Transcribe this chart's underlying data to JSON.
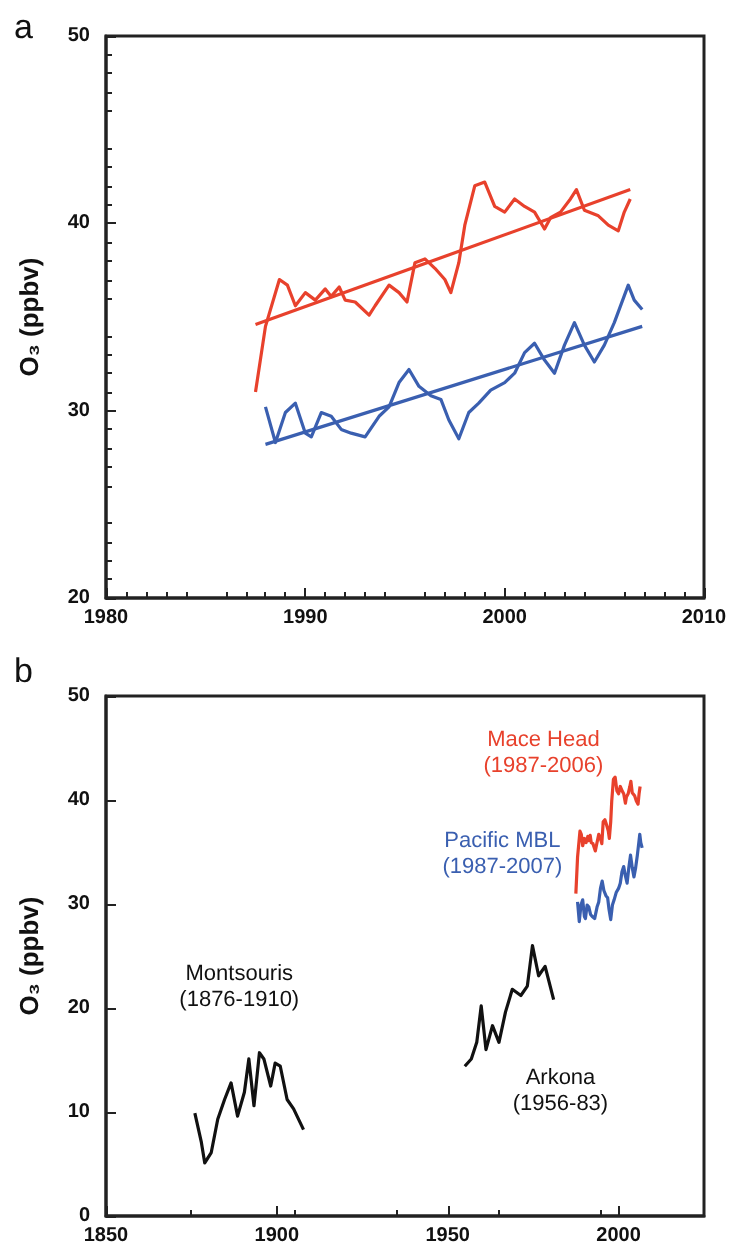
{
  "chart_data": [
    {
      "type": "line",
      "title": "a",
      "ylabel": "O₃ (ppbv)",
      "xlim": [
        1980,
        2010
      ],
      "xticks": [
        1980,
        1990,
        2000,
        2010
      ],
      "ylim": [
        20,
        50
      ],
      "yticks": [
        20,
        30,
        40,
        50
      ],
      "grid": false,
      "legend": false,
      "marker": "none",
      "series": [
        {
          "color": "#e8412c",
          "x": [
            1987.5,
            1988.0,
            1988.7,
            1989.1,
            1989.5,
            1990.0,
            1990.5,
            1991.0,
            1991.3,
            1991.7,
            1992.0,
            1992.5,
            1993.2,
            1993.5,
            1994.2,
            1994.7,
            1995.1,
            1995.5,
            1996.0,
            1996.5,
            1997.0,
            1997.3,
            1997.7,
            1998.0,
            1998.5,
            1999.0,
            1999.5,
            2000.0,
            2000.5,
            2001.0,
            2001.5,
            2002.0,
            2002.3,
            2002.8,
            2003.3,
            2003.6,
            2004.0,
            2004.7,
            2005.2,
            2005.7,
            2006.0,
            2006.3
          ],
          "values": [
            31.0,
            34.5,
            37.0,
            36.7,
            35.6,
            36.3,
            35.9,
            36.5,
            36.1,
            36.6,
            35.9,
            35.8,
            35.1,
            35.6,
            36.7,
            36.3,
            35.8,
            37.9,
            38.1,
            37.6,
            37.0,
            36.3,
            37.9,
            39.9,
            42.0,
            42.2,
            40.9,
            40.6,
            41.3,
            40.9,
            40.6,
            39.7,
            40.3,
            40.6,
            41.3,
            41.8,
            40.7,
            40.4,
            39.9,
            39.6,
            40.6,
            41.3
          ]
        },
        {
          "color": "#3a5fb0",
          "x": [
            1988.0,
            1988.5,
            1989.0,
            1989.5,
            1990.0,
            1990.3,
            1990.8,
            1991.3,
            1991.8,
            1992.3,
            1993.0,
            1993.7,
            1994.2,
            1994.7,
            1995.2,
            1995.7,
            1996.3,
            1996.8,
            1997.2,
            1997.7,
            1998.2,
            1998.7,
            1999.3,
            2000.0,
            2000.5,
            2001.0,
            2001.5,
            2002.0,
            2002.5,
            2003.0,
            2003.5,
            2004.0,
            2004.5,
            2005.0,
            2005.5,
            2006.2,
            2006.5,
            2006.9
          ],
          "values": [
            30.2,
            28.3,
            29.9,
            30.4,
            28.8,
            28.6,
            29.9,
            29.7,
            29.0,
            28.8,
            28.6,
            29.7,
            30.2,
            31.5,
            32.2,
            31.3,
            30.8,
            30.6,
            29.5,
            28.5,
            29.9,
            30.4,
            31.1,
            31.5,
            32.0,
            33.1,
            33.6,
            32.7,
            32.0,
            33.5,
            34.7,
            33.5,
            32.6,
            33.5,
            34.7,
            36.7,
            35.9,
            35.4
          ]
        },
        {
          "type": "line",
          "color": "#e8412c",
          "x": [
            1987.5,
            2006.3
          ],
          "values": [
            34.6,
            41.8
          ]
        },
        {
          "type": "line",
          "color": "#3a5fb0",
          "x": [
            1988.0,
            2006.9
          ],
          "values": [
            28.2,
            34.5
          ]
        }
      ]
    },
    {
      "type": "line",
      "title": "b",
      "ylabel": "O₃ (ppbv)",
      "xlim": [
        1850,
        2025
      ],
      "xticks": [
        1850,
        1900,
        1950,
        2000
      ],
      "ylim": [
        0,
        50
      ],
      "yticks": [
        0,
        10,
        20,
        30,
        40,
        50
      ],
      "grid": false,
      "legend": false,
      "marker": "none",
      "series": [
        {
          "name": "Montsouris\n(1876-1910)",
          "color": "#111111",
          "x": [
            1876.0,
            1877.9,
            1878.9,
            1880.8,
            1882.7,
            1884.7,
            1886.6,
            1888.5,
            1890.5,
            1891.8,
            1893.3,
            1894.9,
            1896.2,
            1898.2,
            1899.5,
            1901.0,
            1903.0,
            1904.9,
            1907.8
          ],
          "values": [
            9.9,
            7.1,
            5.1,
            6.1,
            9.3,
            11.2,
            12.8,
            9.6,
            11.9,
            15.1,
            10.6,
            15.7,
            15.1,
            12.5,
            14.7,
            14.4,
            11.2,
            10.3,
            8.3
          ]
        },
        {
          "name": "Arkona\n(1956-83)",
          "color": "#111111",
          "x": [
            1955.0,
            1956.9,
            1958.5,
            1959.8,
            1961.2,
            1963.1,
            1965.0,
            1966.9,
            1968.9,
            1971.4,
            1973.3,
            1974.8,
            1976.6,
            1978.5,
            1981.0
          ],
          "values": [
            14.4,
            15.1,
            16.7,
            20.2,
            16.0,
            18.3,
            16.7,
            19.6,
            21.8,
            21.2,
            22.1,
            26.0,
            23.1,
            24.0,
            20.8
          ]
        },
        {
          "name": "Mace Head\n(1987-2006)",
          "color": "#e8412c",
          "x": [
            1987.5,
            1988.0,
            1988.7,
            1989.1,
            1989.5,
            1990.0,
            1990.5,
            1991.0,
            1991.3,
            1991.7,
            1992.0,
            1992.5,
            1993.2,
            1993.5,
            1994.2,
            1994.7,
            1995.1,
            1995.5,
            1996.0,
            1996.5,
            1997.0,
            1997.3,
            1997.7,
            1998.0,
            1998.5,
            1999.0,
            1999.5,
            2000.0,
            2000.5,
            2001.0,
            2001.5,
            2002.0,
            2002.3,
            2002.8,
            2003.3,
            2003.6,
            2004.0,
            2004.7,
            2005.2,
            2005.7,
            2006.0,
            2006.3
          ],
          "values": [
            31.0,
            34.5,
            37.0,
            36.7,
            35.6,
            36.3,
            35.9,
            36.5,
            36.1,
            36.6,
            35.9,
            35.8,
            35.1,
            35.6,
            36.7,
            36.3,
            35.8,
            37.9,
            38.1,
            37.6,
            37.0,
            36.3,
            37.9,
            39.9,
            42.0,
            42.2,
            40.9,
            40.6,
            41.3,
            40.9,
            40.6,
            39.7,
            40.3,
            40.6,
            41.3,
            41.8,
            40.7,
            40.4,
            39.9,
            39.6,
            40.6,
            41.3
          ]
        },
        {
          "name": "Pacific MBL\n(1987-2007)",
          "color": "#3a5fb0",
          "x": [
            1988.0,
            1988.5,
            1989.0,
            1989.5,
            1990.0,
            1990.3,
            1990.8,
            1991.3,
            1991.8,
            1992.3,
            1993.0,
            1993.7,
            1994.2,
            1994.7,
            1995.2,
            1995.7,
            1996.3,
            1996.8,
            1997.2,
            1997.7,
            1998.2,
            1998.7,
            1999.3,
            2000.0,
            2000.5,
            2001.0,
            2001.5,
            2002.0,
            2002.5,
            2003.0,
            2003.5,
            2004.0,
            2004.5,
            2005.0,
            2005.5,
            2006.2,
            2006.5,
            2006.9
          ],
          "values": [
            30.2,
            28.3,
            29.9,
            30.4,
            28.8,
            28.6,
            29.9,
            29.7,
            29.0,
            28.8,
            28.6,
            29.7,
            30.2,
            31.5,
            32.2,
            31.3,
            30.8,
            30.6,
            29.5,
            28.5,
            29.9,
            30.4,
            31.1,
            31.5,
            32.0,
            33.1,
            33.6,
            32.7,
            32.0,
            33.5,
            34.7,
            33.5,
            32.6,
            33.5,
            34.7,
            36.7,
            35.9,
            35.4
          ]
        }
      ]
    }
  ]
}
